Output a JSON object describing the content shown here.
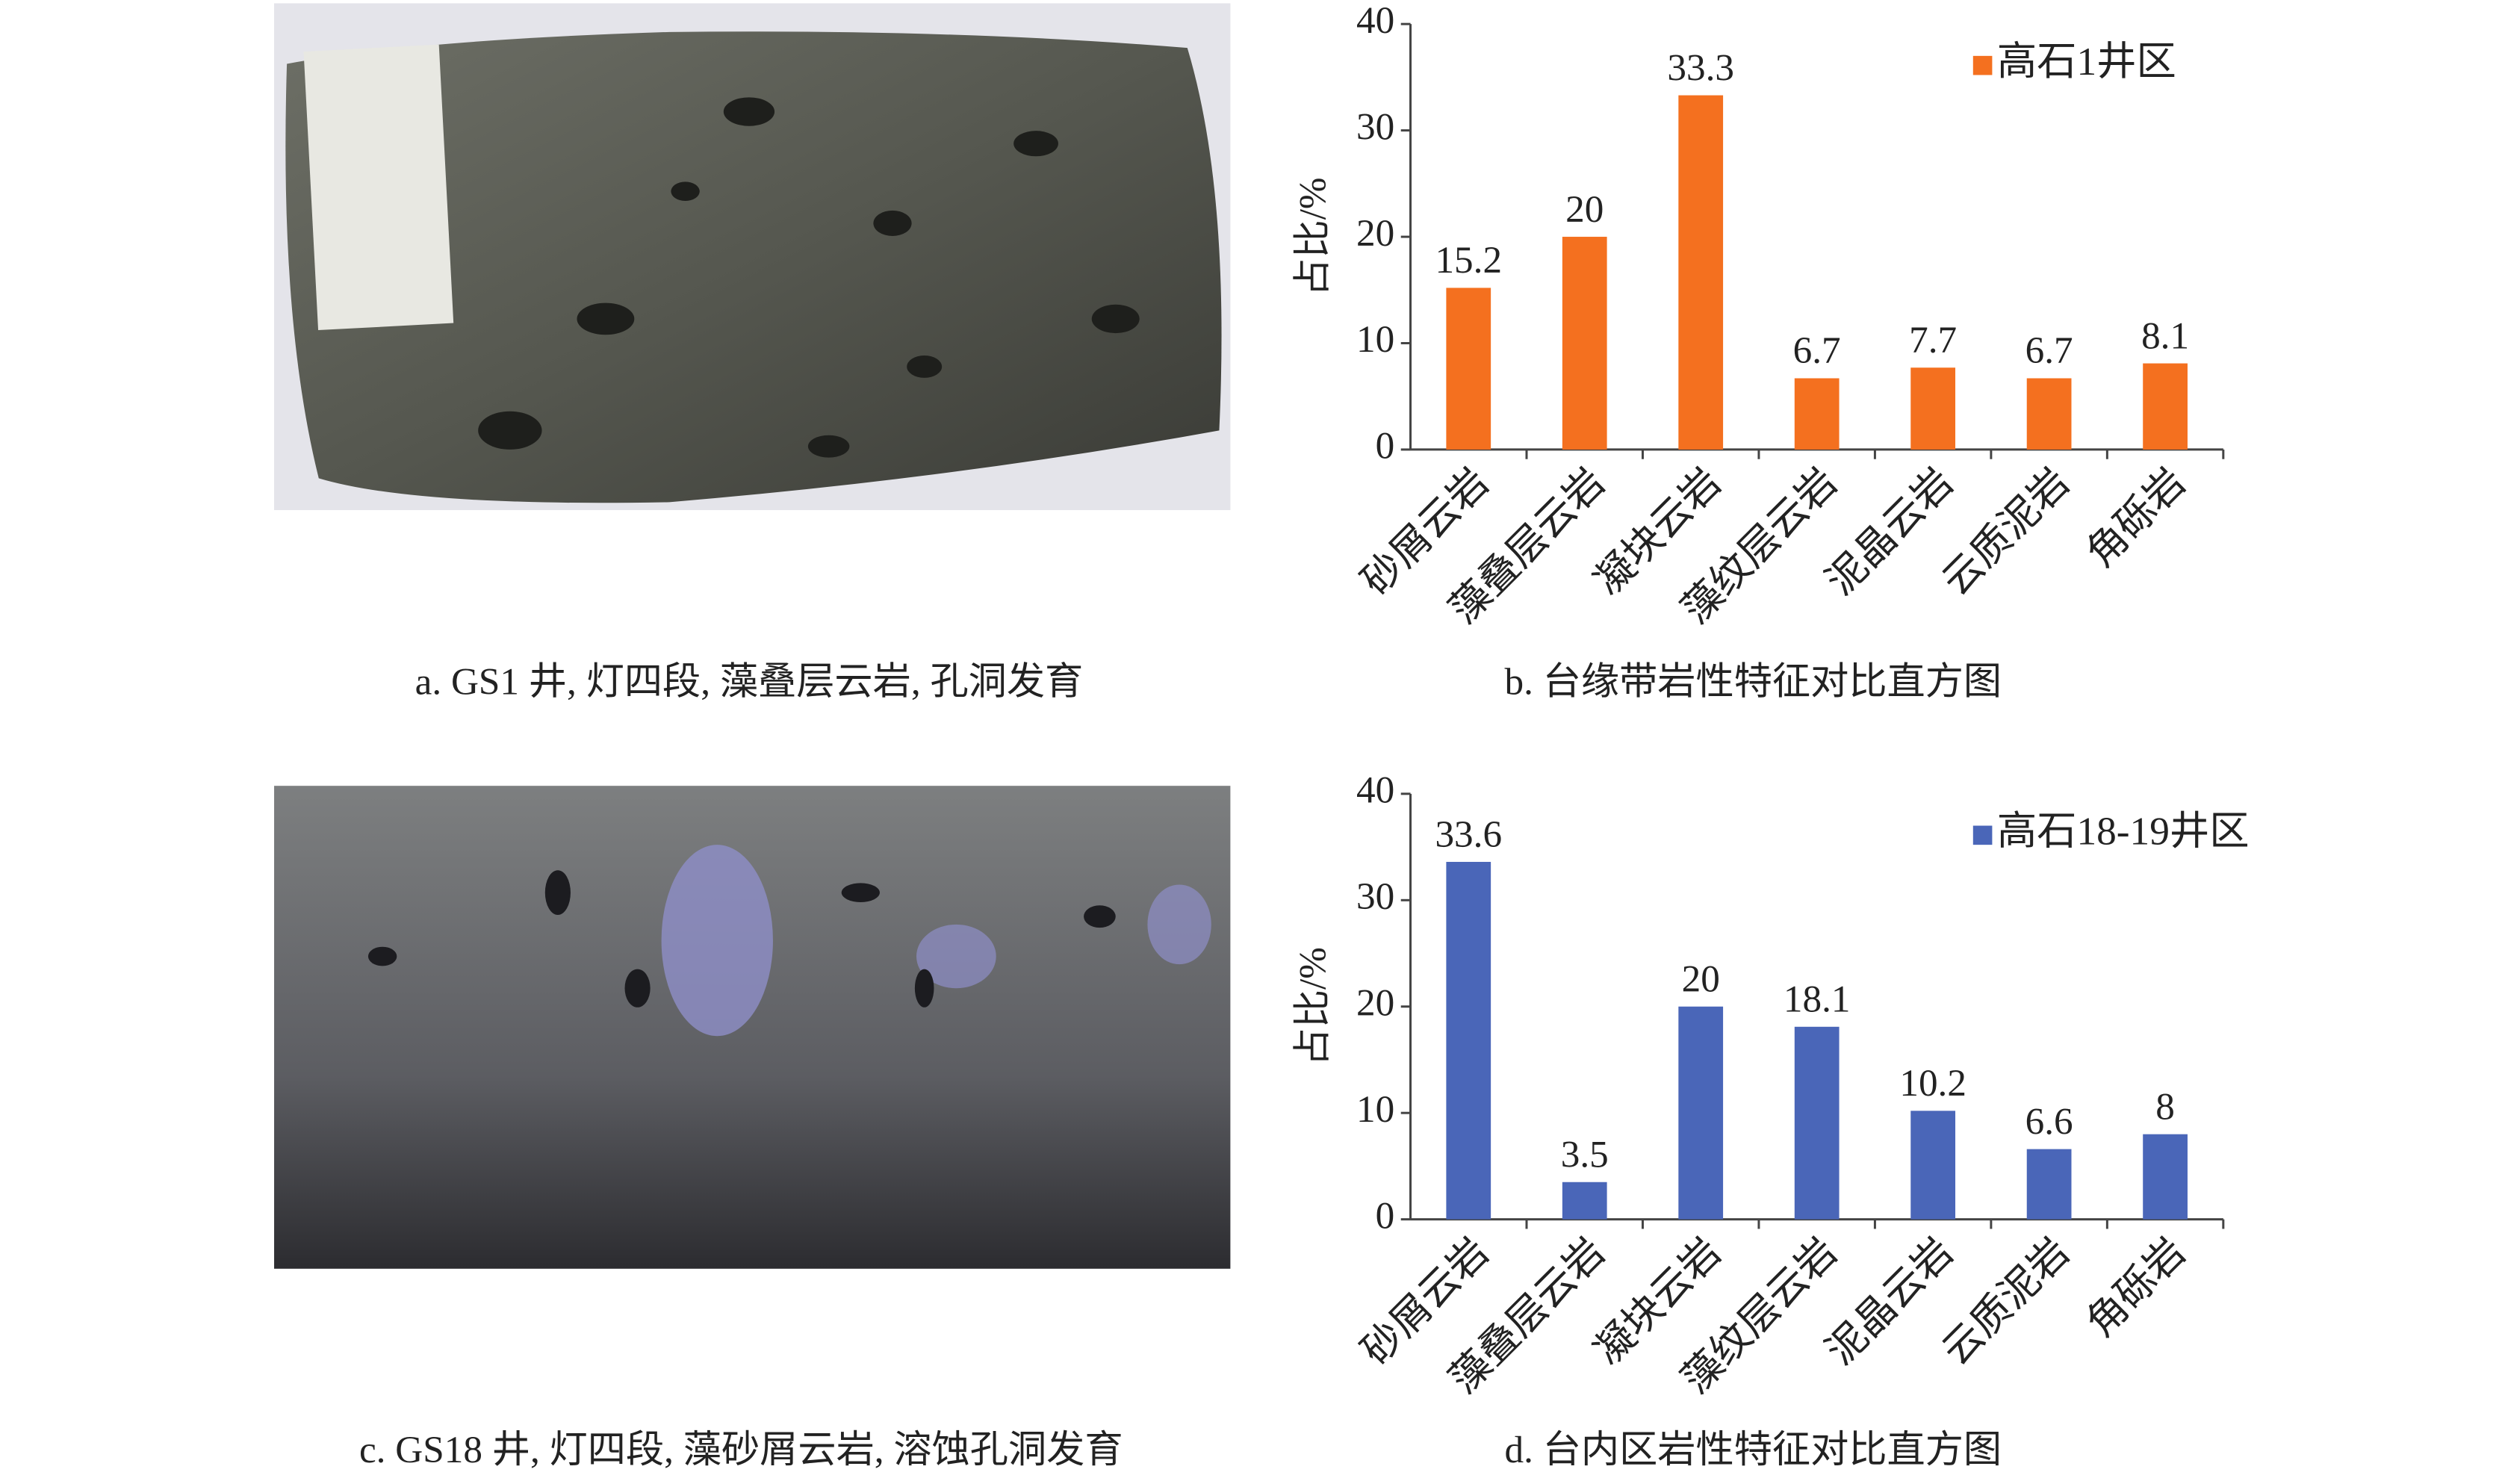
{
  "photos": [
    {
      "caption": "a. GS1 井, 灯四段, 藻叠层云岩, 孔洞发育"
    },
    {
      "caption": "c. GS18 井, 灯四段, 藻砂屑云岩, 溶蚀孔洞发育"
    }
  ],
  "chart_data": [
    {
      "type": "bar",
      "title": "b. 台缘带岩性特征对比直方图",
      "y_label": "占比/%",
      "categories": [
        "砂屑云岩",
        "藻叠层云岩",
        "凝块云岩",
        "藻纹层云岩",
        "泥晶云岩",
        "云质泥岩",
        "角砾岩"
      ],
      "series": [
        {
          "name": "高石1井区",
          "color": "#f4701f",
          "values": [
            15.2,
            20,
            33.3,
            6.7,
            7.7,
            6.7,
            8.1
          ]
        }
      ],
      "ylim": [
        0,
        40
      ],
      "yticks": [
        0,
        10,
        20,
        30,
        40
      ],
      "legend": "upper right"
    },
    {
      "type": "bar",
      "title": "d. 台内区岩性特征对比直方图",
      "y_label": "占比/%",
      "categories": [
        "砂屑云岩",
        "藻叠层云岩",
        "凝块云岩",
        "藻纹层云岩",
        "泥晶云岩",
        "云质泥岩",
        "角砾岩"
      ],
      "series": [
        {
          "name": "高石18-19井区",
          "color": "#4a66b8",
          "values": [
            33.6,
            3.5,
            20,
            18.1,
            10.2,
            6.6,
            8
          ]
        }
      ],
      "ylim": [
        0,
        40
      ],
      "yticks": [
        0,
        10,
        20,
        30,
        40
      ],
      "legend": "upper right"
    }
  ]
}
